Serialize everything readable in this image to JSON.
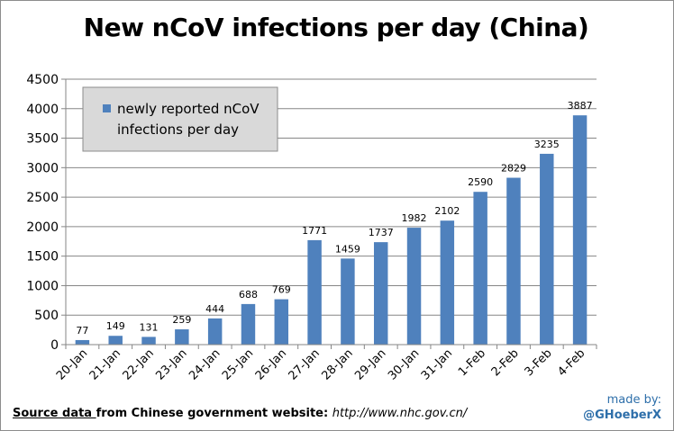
{
  "chart_data": {
    "type": "bar",
    "title": "New nCoV infections per day (China)",
    "categories": [
      "20-Jan",
      "21-Jan",
      "22-Jan",
      "23-Jan",
      "24-Jan",
      "25-Jan",
      "26-Jan",
      "27-Jan",
      "28-Jan",
      "29-Jan",
      "30-Jan",
      "31-Jan",
      "1-Feb",
      "2-Feb",
      "3-Feb",
      "4-Feb"
    ],
    "series": [
      {
        "name": "newly reported nCoV infections per day",
        "values": [
          77,
          149,
          131,
          259,
          444,
          688,
          769,
          1771,
          1459,
          1737,
          1982,
          2102,
          2590,
          2829,
          3235,
          3887
        ]
      }
    ],
    "ylim": [
      0,
      4500
    ],
    "yticks": [
      0,
      500,
      1000,
      1500,
      2000,
      2500,
      3000,
      3500,
      4000,
      4500
    ],
    "xlabel": "",
    "ylabel": "",
    "grid": true,
    "legend_position": "top-left",
    "bar_color": "#4f81bd"
  },
  "legend": {
    "line1": "newly reported nCoV",
    "line2": "infections per day"
  },
  "footer": {
    "source_label": "Source data ",
    "source_mid": "from Chinese government website: ",
    "source_url": "http://www.nhc.gov.cn/"
  },
  "credit": {
    "made_by": "made by:",
    "handle": "@GHoeberX"
  }
}
